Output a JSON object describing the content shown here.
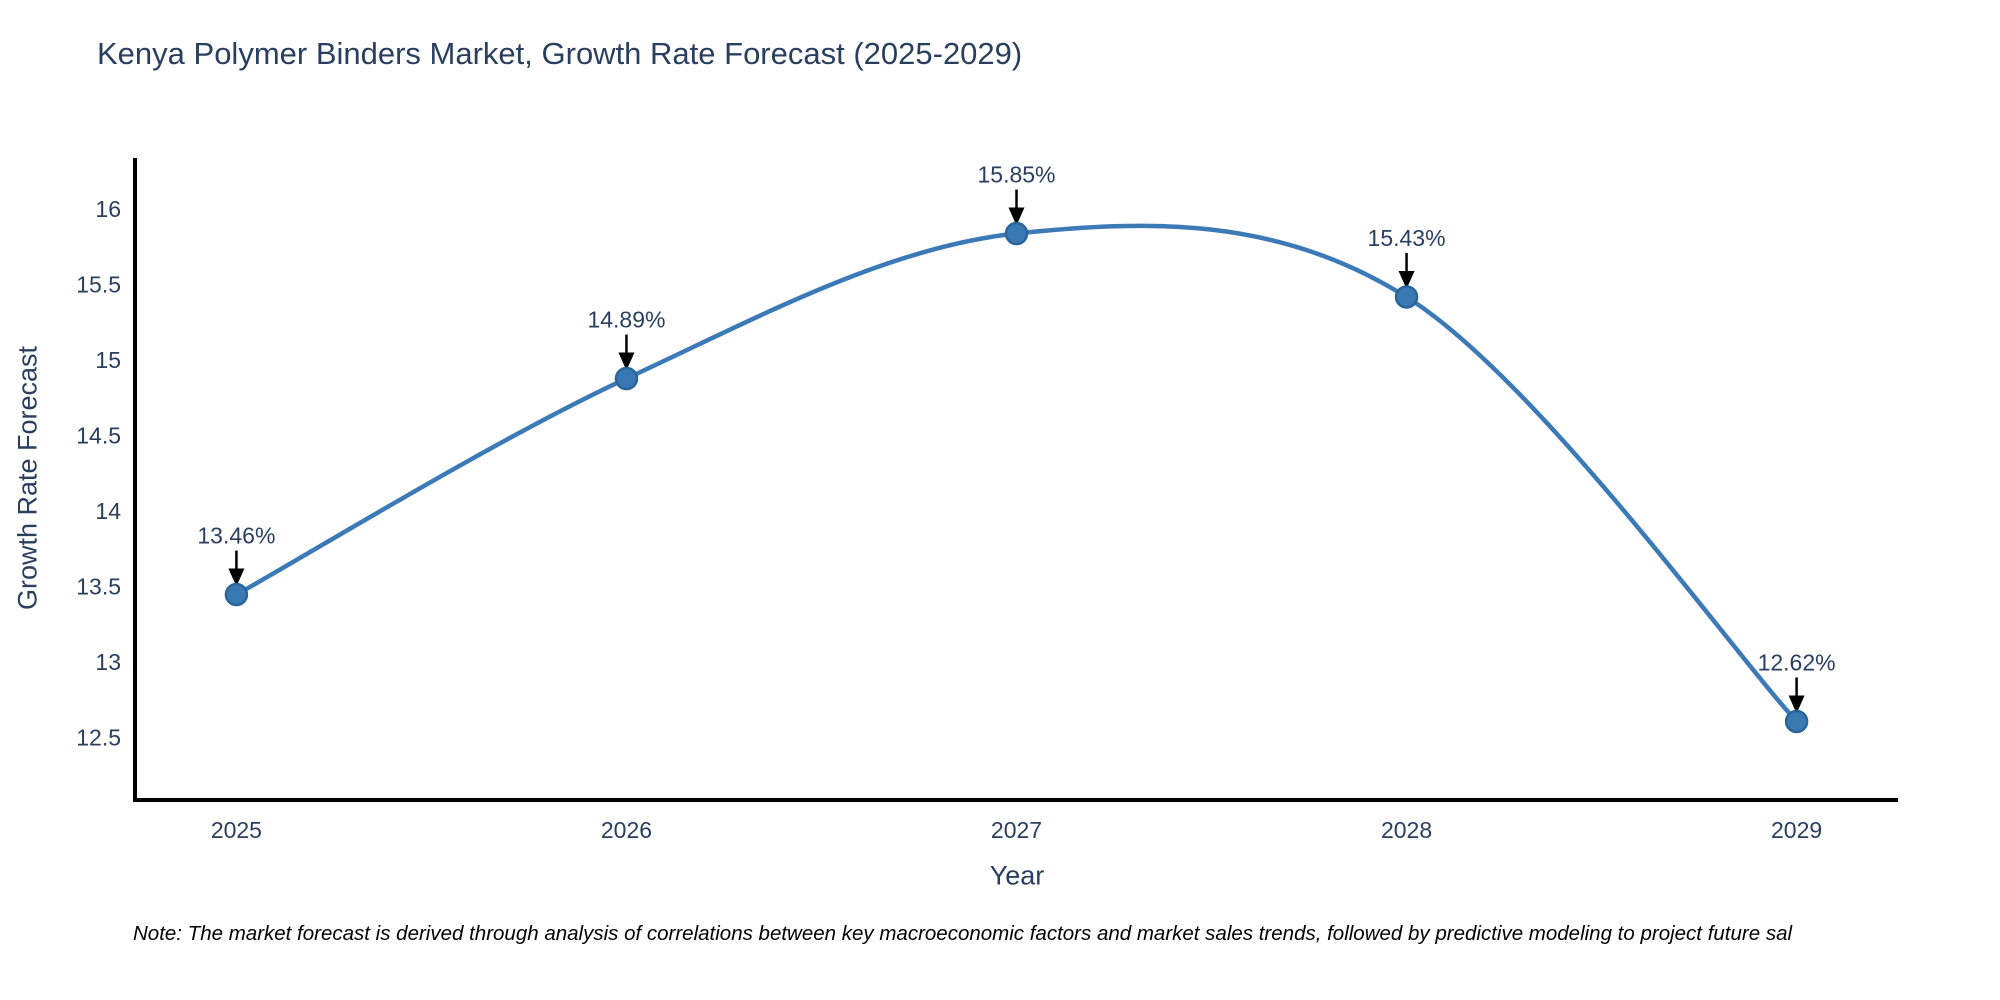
{
  "chart_data": {
    "type": "line",
    "title": "Kenya Polymer Binders Market, Growth Rate Forecast (2025-2029)",
    "xlabel": "Year",
    "ylabel": "Growth Rate Forecast",
    "x": [
      2025,
      2026,
      2027,
      2028,
      2029
    ],
    "values": [
      13.46,
      14.89,
      15.85,
      15.43,
      12.62
    ],
    "point_labels": [
      "13.46%",
      "14.89%",
      "15.85%",
      "15.43%",
      "12.62%"
    ],
    "xtick_labels": [
      "2025",
      "2026",
      "2027",
      "2028",
      "2029"
    ],
    "ytick_values": [
      12.5,
      13,
      13.5,
      14,
      14.5,
      15,
      15.5,
      16
    ],
    "xlim": [
      2024.74,
      2029.26
    ],
    "ylim": [
      12.1,
      16.35
    ],
    "grid": false,
    "legend_position": "none",
    "line_shape": "spline",
    "colors": {
      "line": "#3c7ab7",
      "marker_fill": "#3879b4",
      "marker_edge": "#2a6498",
      "axis_line": "#000000",
      "tick_text": "#2a3f5f",
      "annotation_text": "#2a3f5f",
      "arrow": "#000000",
      "background": "#ffffff"
    }
  },
  "note": "Note: The market forecast is derived through analysis of correlations between key macroeconomic factors and market sales trends, followed by predictive modeling to project future sal"
}
